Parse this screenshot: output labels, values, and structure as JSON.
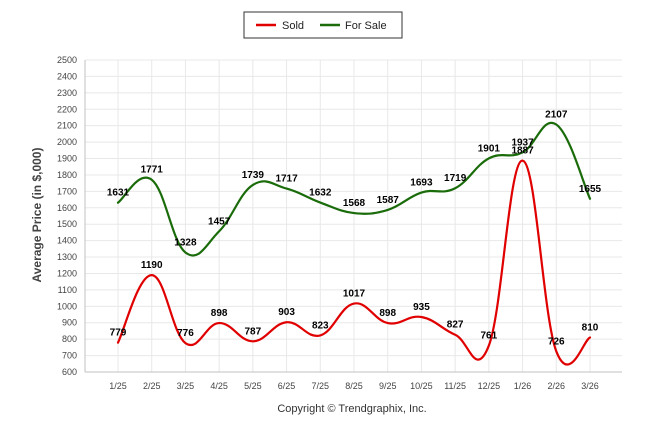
{
  "chart_data": {
    "type": "line",
    "title": "",
    "xlabel": "",
    "ylabel": "Average Price (in $,000)",
    "ylim": [
      600,
      2500
    ],
    "ytick_step": 100,
    "grid": true,
    "legend_position": "top-center",
    "categories": [
      "1/25",
      "2/25",
      "3/25",
      "4/25",
      "5/25",
      "6/25",
      "7/25",
      "8/25",
      "9/25",
      "10/25",
      "11/25",
      "12/25",
      "1/26",
      "2/26",
      "3/26"
    ],
    "series": [
      {
        "name": "Sold",
        "color": "#e00000",
        "values": [
          779,
          1190,
          776,
          898,
          787,
          903,
          823,
          1017,
          898,
          935,
          827,
          761,
          1887,
          726,
          810
        ]
      },
      {
        "name": "For Sale",
        "color": "#1a6b0a",
        "values": [
          1631,
          1771,
          1328,
          1457,
          1739,
          1717,
          1632,
          1568,
          1587,
          1693,
          1719,
          1901,
          1937,
          2107,
          1655
        ]
      }
    ],
    "caption": "Copyright © Trendgraphix, Inc."
  }
}
